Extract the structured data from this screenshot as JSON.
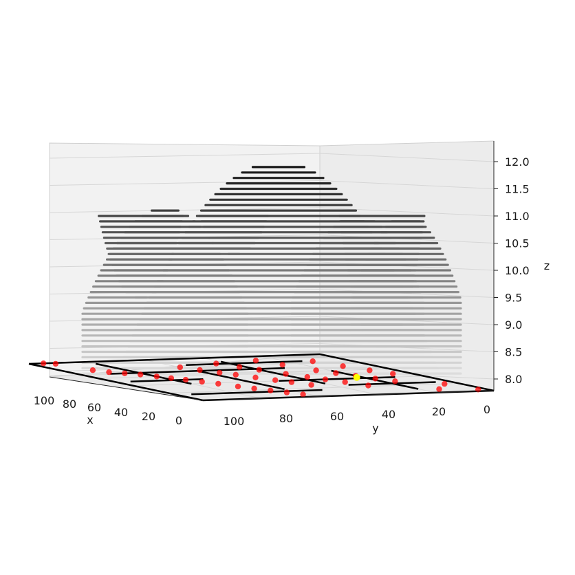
{
  "chart_data": {
    "type": "scatter",
    "projection": "3d",
    "title": "",
    "xlabel": "x",
    "ylabel": "y",
    "zlabel": "z",
    "xlim": [
      0,
      100
    ],
    "ylim": [
      0,
      100
    ],
    "zlim": [
      7.9,
      12.1
    ],
    "x_ticks": [
      "0",
      "20",
      "40",
      "60",
      "80",
      "100"
    ],
    "y_ticks": [
      "0",
      "20",
      "40",
      "60",
      "80",
      "100"
    ],
    "z_ticks": [
      "8.0",
      "8.5",
      "9.0",
      "9.5",
      "10.0",
      "10.5",
      "11.0",
      "11.5",
      "12.0"
    ],
    "grid": true,
    "colors": {
      "points": "#ff0000",
      "highlight": "#ffff00",
      "maze": "#000000",
      "contour_dark": "#111111",
      "contour_light": "#dddddd"
    },
    "surface": {
      "style": "horizontal contour slices",
      "z_levels": [
        8.1,
        8.2,
        8.3,
        8.4,
        8.5,
        8.6,
        8.7,
        8.8,
        8.9,
        9.0,
        9.1,
        9.2,
        9.3,
        9.4,
        9.5,
        9.6,
        9.7,
        9.8,
        9.9,
        10.0,
        10.1,
        10.2,
        10.3,
        10.4,
        10.5,
        10.6,
        10.7,
        10.8,
        10.9,
        11.0,
        11.1,
        11.2,
        11.3,
        11.4,
        11.5,
        11.6,
        11.7,
        11.8,
        11.9,
        12.0
      ]
    },
    "points": [
      {
        "x": 95,
        "y": 100
      },
      {
        "x": 92,
        "y": 98
      },
      {
        "x": 90,
        "y": 80
      },
      {
        "x": 88,
        "y": 74
      },
      {
        "x": 85,
        "y": 70
      },
      {
        "x": 82,
        "y": 66
      },
      {
        "x": 80,
        "y": 60
      },
      {
        "x": 78,
        "y": 55
      },
      {
        "x": 76,
        "y": 50
      },
      {
        "x": 74,
        "y": 44
      },
      {
        "x": 72,
        "y": 38
      },
      {
        "x": 70,
        "y": 30
      },
      {
        "x": 68,
        "y": 24
      },
      {
        "x": 66,
        "y": 18
      },
      {
        "x": 64,
        "y": 12
      },
      {
        "x": 62,
        "y": 6
      },
      {
        "x": 60,
        "y": 80
      },
      {
        "x": 58,
        "y": 72
      },
      {
        "x": 56,
        "y": 64
      },
      {
        "x": 54,
        "y": 58
      },
      {
        "x": 52,
        "y": 50
      },
      {
        "x": 50,
        "y": 42
      },
      {
        "x": 48,
        "y": 36
      },
      {
        "x": 46,
        "y": 28
      },
      {
        "x": 44,
        "y": 86
      },
      {
        "x": 42,
        "y": 76
      },
      {
        "x": 40,
        "y": 68
      },
      {
        "x": 38,
        "y": 56
      },
      {
        "x": 36,
        "y": 47
      },
      {
        "x": 34,
        "y": 40
      },
      {
        "x": 32,
        "y": 32
      },
      {
        "x": 30,
        "y": 22
      },
      {
        "x": 28,
        "y": 90
      },
      {
        "x": 26,
        "y": 78
      },
      {
        "x": 24,
        "y": 62
      },
      {
        "x": 22,
        "y": 54
      },
      {
        "x": 20,
        "y": 46
      },
      {
        "x": 18,
        "y": 38
      },
      {
        "x": 16,
        "y": 30
      },
      {
        "x": 14,
        "y": 8
      },
      {
        "x": 12,
        "y": 84
      },
      {
        "x": 10,
        "y": 70
      },
      {
        "x": 8,
        "y": 58
      },
      {
        "x": 6,
        "y": 48
      },
      {
        "x": 5,
        "y": 20
      },
      {
        "x": 3,
        "y": 4
      }
    ],
    "highlight_point": {
      "x": 22,
      "y": 42
    }
  }
}
